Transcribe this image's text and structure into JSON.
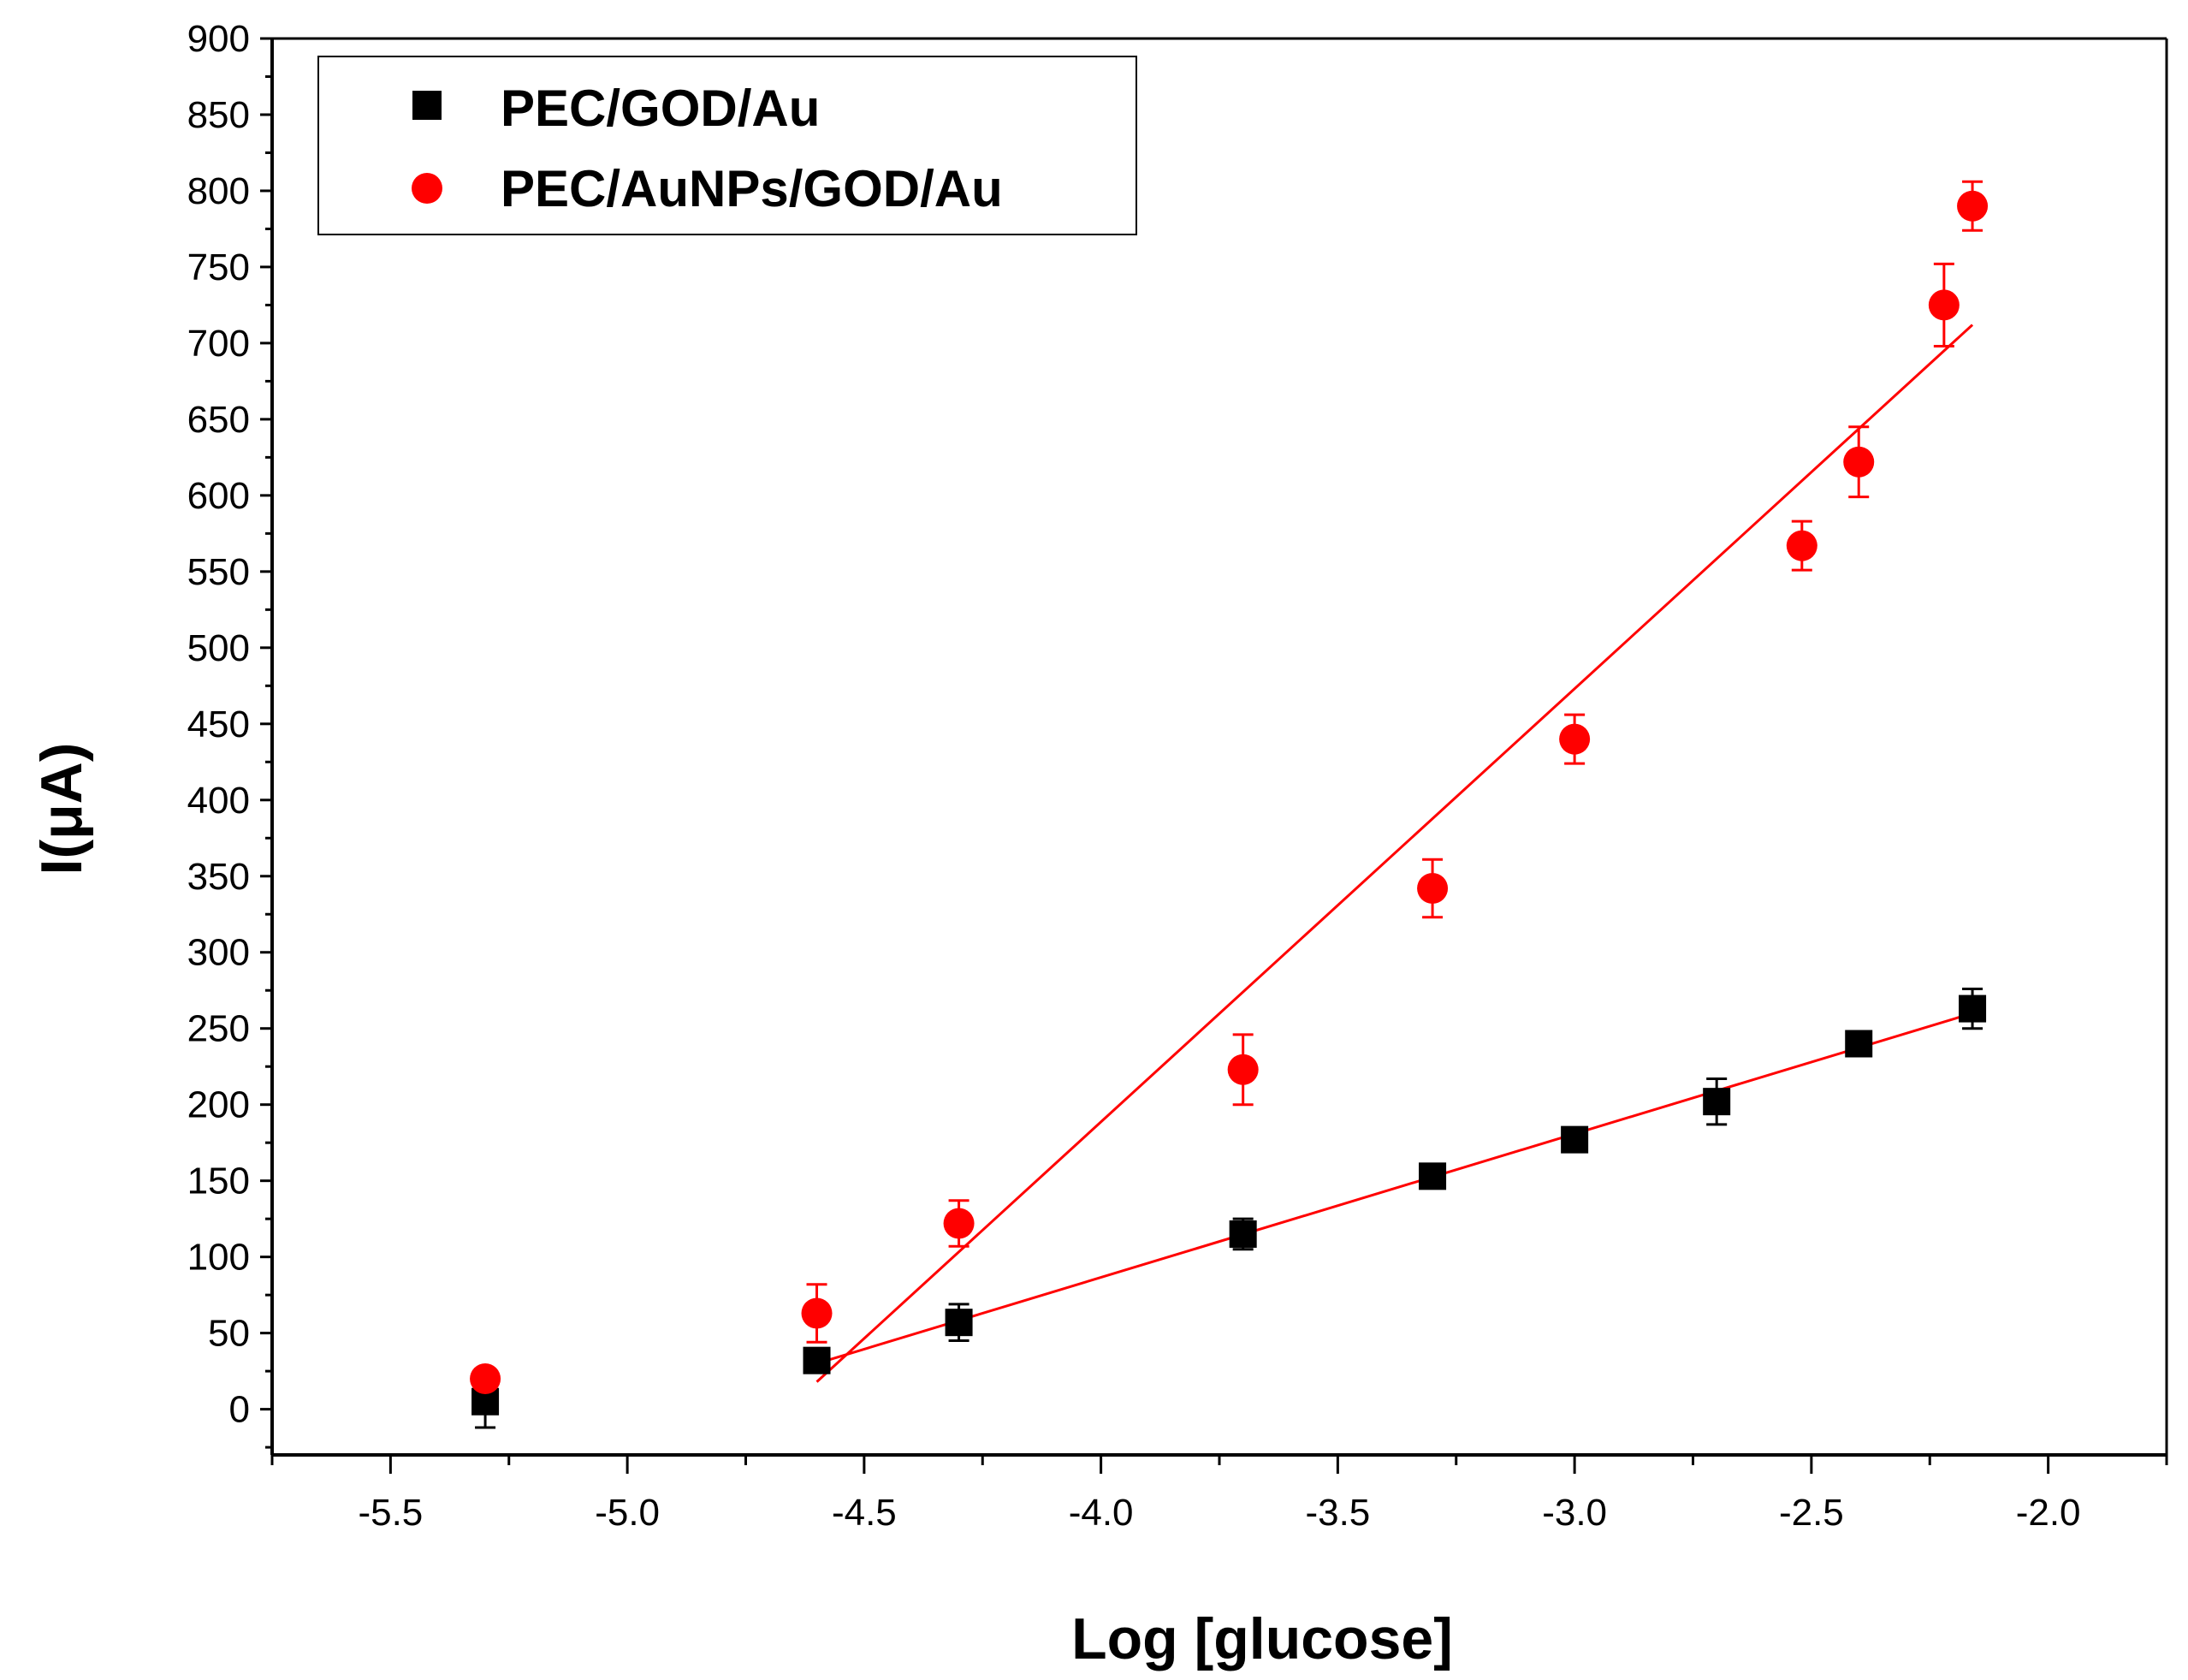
{
  "chart_data": {
    "type": "scatter",
    "title": "",
    "xlabel": "Log [glucose]",
    "ylabel": "I(μA)",
    "xlim": [
      -5.75,
      -1.75
    ],
    "ylim": [
      -30,
      900
    ],
    "x_ticks": [
      -5.5,
      -5.0,
      -4.5,
      -4.0,
      -3.5,
      -3.0,
      -2.5,
      -2.0
    ],
    "x_tick_labels": [
      "-5.5",
      "-5.0",
      "-4.5",
      "-4.0",
      "-3.5",
      "-3.0",
      "-2.5",
      "-2.0"
    ],
    "y_ticks": [
      0,
      50,
      100,
      150,
      200,
      250,
      300,
      350,
      400,
      450,
      500,
      550,
      600,
      650,
      700,
      750,
      800,
      850,
      900
    ],
    "y_tick_labels": [
      "0",
      "50",
      "100",
      "150",
      "200",
      "250",
      "300",
      "350",
      "400",
      "450",
      "500",
      "550",
      "600",
      "650",
      "700",
      "750",
      "800",
      "850",
      "900"
    ],
    "grid": false,
    "legend_position": "top-left",
    "series": [
      {
        "name": "PEC/GOD/Au",
        "marker": "square",
        "color": "#000000",
        "x": [
          -5.3,
          -4.6,
          -4.3,
          -3.7,
          -3.3,
          -3.0,
          -2.7,
          -2.4,
          -2.16
        ],
        "y": [
          5,
          32,
          57,
          115,
          153,
          177,
          202,
          240,
          263
        ],
        "error": [
          17,
          6,
          12,
          10,
          6,
          6,
          15,
          6,
          13
        ],
        "fit": {
          "x": [
            -4.6,
            -2.16
          ],
          "y": [
            30,
            260
          ]
        }
      },
      {
        "name": "PEC/AuNPs/GOD/Au",
        "marker": "circle",
        "color": "#ff0000",
        "x": [
          -5.3,
          -4.6,
          -4.3,
          -3.7,
          -3.3,
          -3.0,
          -2.52,
          -2.4,
          -2.22,
          -2.16
        ],
        "y": [
          20,
          63,
          122,
          223,
          342,
          440,
          567,
          622,
          725,
          790
        ],
        "error": [
          4,
          19,
          15,
          23,
          19,
          16,
          16,
          23,
          27,
          16
        ],
        "fit": {
          "x": [
            -4.6,
            -2.16
          ],
          "y": [
            18,
            712
          ]
        }
      }
    ]
  }
}
